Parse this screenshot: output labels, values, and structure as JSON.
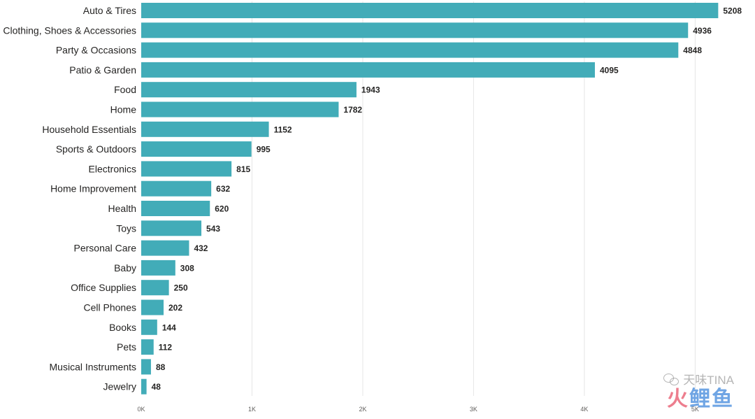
{
  "colors": {
    "bar": "#42acb8",
    "grid": "#e6e6e6",
    "text": "#252423",
    "tick": "#605e5c"
  },
  "chart_data": {
    "type": "bar",
    "orientation": "horizontal",
    "categories": [
      "Auto & Tires",
      "Clothing, Shoes & Accessories",
      "Party & Occasions",
      "Patio & Garden",
      "Food",
      "Home",
      "Household Essentials",
      "Sports & Outdoors",
      "Electronics",
      "Home Improvement",
      "Health",
      "Toys",
      "Personal Care",
      "Baby",
      "Office Supplies",
      "Cell Phones",
      "Books",
      "Pets",
      "Musical Instruments",
      "Jewelry"
    ],
    "values": [
      5208,
      4936,
      4848,
      4095,
      1943,
      1782,
      1152,
      995,
      815,
      632,
      620,
      543,
      432,
      308,
      250,
      202,
      144,
      112,
      88,
      48
    ],
    "value_labels": [
      "5208",
      "4936",
      "4848",
      "4095",
      "1943",
      "1782",
      "1152",
      "995",
      "815",
      "632",
      "620",
      "543",
      "432",
      "308",
      "250",
      "202",
      "144",
      "112",
      "88",
      "48"
    ],
    "x_ticks": [
      0,
      1000,
      2000,
      3000,
      4000,
      5000
    ],
    "x_tick_labels": [
      "0K",
      "1K",
      "2K",
      "3K",
      "4K",
      "5K"
    ],
    "xlim": [
      0,
      5000
    ],
    "grid": true,
    "title": "",
    "xlabel": "",
    "ylabel": ""
  },
  "watermark": {
    "top_text": "天味TINA",
    "bottom_text_left": "火",
    "bottom_text_right": "鲤鱼"
  }
}
